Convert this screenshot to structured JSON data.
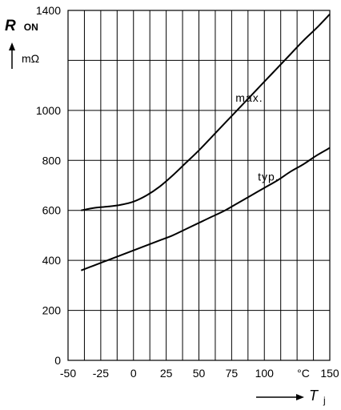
{
  "chart_data": {
    "type": "line",
    "title": "",
    "y_axis": {
      "symbol": "R",
      "subscript": "ON",
      "unit": "mΩ",
      "lim": [
        0,
        1400
      ],
      "ticks": [
        0,
        200,
        400,
        600,
        800,
        1000,
        1200,
        1400
      ],
      "tick_labels": [
        "0",
        "200",
        "400",
        "600",
        "800",
        "1000",
        "",
        "1400"
      ]
    },
    "x_axis": {
      "symbol": "T",
      "subscript": "j",
      "unit": "°C",
      "lim": [
        -50,
        150
      ],
      "ticks": [
        -50,
        -37.5,
        -25,
        -12.5,
        0,
        12.5,
        25,
        37.5,
        50,
        62.5,
        75,
        87.5,
        100,
        112.5,
        125,
        137.5,
        150
      ],
      "tick_labels": [
        "-50",
        "-25",
        "0",
        "25",
        "50",
        "75",
        "100",
        "150"
      ],
      "label_positions": [
        -50,
        -25,
        0,
        25,
        50,
        75,
        100,
        150
      ]
    },
    "grid": true,
    "series": [
      {
        "name": "max.",
        "x": [
          -40,
          -30,
          -20,
          -10,
          0,
          10,
          20,
          30,
          40,
          50,
          60,
          70,
          80,
          90,
          100,
          110,
          120,
          130,
          140,
          150
        ],
        "y": [
          600,
          610,
          615,
          622,
          635,
          660,
          695,
          740,
          790,
          840,
          895,
          950,
          1005,
          1060,
          1115,
          1170,
          1225,
          1280,
          1330,
          1385
        ]
      },
      {
        "name": "typ.",
        "x": [
          -40,
          -30,
          -20,
          -10,
          0,
          10,
          20,
          30,
          40,
          50,
          60,
          70,
          80,
          90,
          100,
          110,
          120,
          130,
          140,
          150
        ],
        "y": [
          360,
          380,
          400,
          420,
          440,
          460,
          480,
          500,
          525,
          550,
          575,
          600,
          630,
          660,
          690,
          720,
          755,
          785,
          820,
          850
        ]
      }
    ],
    "annotations": [
      {
        "text": "max.",
        "x": 78,
        "y": 1035
      },
      {
        "text": "typ.",
        "x": 95,
        "y": 720
      },
      {
        "text": "°C",
        "x": 125,
        "y": -60
      }
    ]
  }
}
